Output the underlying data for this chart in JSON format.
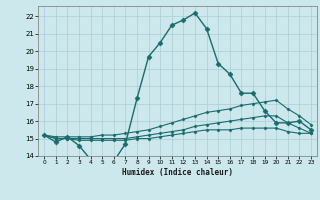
{
  "xlabel": "Humidex (Indice chaleur)",
  "background_color": "#cce8ec",
  "grid_color": "#aacdd4",
  "line_color": "#1a6b6b",
  "xlim": [
    -0.5,
    23.5
  ],
  "ylim": [
    14.0,
    22.6
  ],
  "yticks": [
    14,
    15,
    16,
    17,
    18,
    19,
    20,
    21,
    22
  ],
  "xticks": [
    0,
    1,
    2,
    3,
    4,
    5,
    6,
    7,
    8,
    9,
    10,
    11,
    12,
    13,
    14,
    15,
    16,
    17,
    18,
    19,
    20,
    21,
    22,
    23
  ],
  "lines": [
    {
      "x": [
        0,
        1,
        2,
        3,
        4,
        5,
        6,
        7,
        8,
        9,
        10,
        11,
        12,
        13,
        14,
        15,
        16,
        17,
        18,
        19,
        20,
        21,
        22,
        23
      ],
      "y": [
        15.2,
        14.8,
        15.1,
        14.6,
        13.8,
        13.8,
        13.7,
        14.7,
        17.3,
        19.7,
        20.5,
        21.5,
        21.8,
        22.2,
        21.3,
        19.3,
        18.7,
        17.6,
        17.6,
        16.6,
        15.9,
        15.9,
        16.0,
        15.5
      ],
      "marker": "D",
      "markersize": 2.5,
      "linewidth": 1.0
    },
    {
      "x": [
        0,
        1,
        2,
        3,
        4,
        5,
        6,
        7,
        8,
        9,
        10,
        11,
        12,
        13,
        14,
        15,
        16,
        17,
        18,
        19,
        20,
        21,
        22,
        23
      ],
      "y": [
        15.2,
        15.1,
        15.1,
        15.1,
        15.1,
        15.2,
        15.2,
        15.3,
        15.4,
        15.5,
        15.7,
        15.9,
        16.1,
        16.3,
        16.5,
        16.6,
        16.7,
        16.9,
        17.0,
        17.1,
        17.2,
        16.7,
        16.3,
        15.8
      ],
      "marker": "D",
      "markersize": 1.5,
      "linewidth": 0.8
    },
    {
      "x": [
        0,
        1,
        2,
        3,
        4,
        5,
        6,
        7,
        8,
        9,
        10,
        11,
        12,
        13,
        14,
        15,
        16,
        17,
        18,
        19,
        20,
        21,
        22,
        23
      ],
      "y": [
        15.2,
        15.0,
        15.0,
        15.0,
        15.0,
        15.0,
        15.0,
        15.0,
        15.1,
        15.2,
        15.3,
        15.4,
        15.5,
        15.7,
        15.8,
        15.9,
        16.0,
        16.1,
        16.2,
        16.3,
        16.3,
        15.9,
        15.6,
        15.3
      ],
      "marker": "D",
      "markersize": 1.5,
      "linewidth": 0.8
    },
    {
      "x": [
        0,
        1,
        2,
        3,
        4,
        5,
        6,
        7,
        8,
        9,
        10,
        11,
        12,
        13,
        14,
        15,
        16,
        17,
        18,
        19,
        20,
        21,
        22,
        23
      ],
      "y": [
        15.2,
        15.0,
        15.0,
        14.9,
        14.9,
        14.9,
        14.9,
        14.9,
        15.0,
        15.0,
        15.1,
        15.2,
        15.3,
        15.4,
        15.5,
        15.5,
        15.5,
        15.6,
        15.6,
        15.6,
        15.6,
        15.4,
        15.3,
        15.3
      ],
      "marker": "D",
      "markersize": 1.5,
      "linewidth": 0.8
    }
  ]
}
